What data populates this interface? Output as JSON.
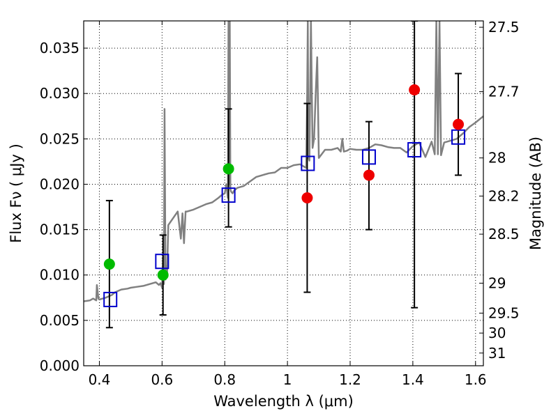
{
  "chart_data": {
    "type": "scatter",
    "xlabel": "Wavelength  λ (μm)",
    "ylabel": "Flux  Fν  ( μJy )",
    "ylabel_right": "Magnitude (AB)",
    "xlim": [
      0.35,
      1.625
    ],
    "ylim": [
      0.0,
      0.038
    ],
    "grid": true,
    "x_ticks": [
      0.4,
      0.6,
      0.8,
      1.0,
      1.2,
      1.4,
      1.6
    ],
    "x_tick_labels": [
      "0.4",
      "0.6",
      "0.8",
      "1",
      "1.2",
      "1.4",
      "1.6"
    ],
    "y_ticks": [
      0.0,
      0.005,
      0.01,
      0.015,
      0.02,
      0.025,
      0.03,
      0.035
    ],
    "y_tick_labels": [
      "0.000",
      "0.005",
      "0.010",
      "0.015",
      "0.020",
      "0.025",
      "0.030",
      "0.035"
    ],
    "right_ticks": [
      {
        "flux": 0.0373,
        "label": "27.5"
      },
      {
        "flux": 0.0302,
        "label": "27.7"
      },
      {
        "flux": 0.0229,
        "label": "28"
      },
      {
        "flux": 0.0187,
        "label": "28.2"
      },
      {
        "flux": 0.0145,
        "label": "28.5"
      },
      {
        "flux": 0.0091,
        "label": "29"
      },
      {
        "flux": 0.0058,
        "label": "29.5"
      },
      {
        "flux": 0.0036,
        "label": "30"
      },
      {
        "flux": 0.0014,
        "label": "31"
      }
    ],
    "series": [
      {
        "kind": "spectrum",
        "color": "#808080",
        "x": [
          0.35,
          0.37,
          0.38,
          0.39,
          0.392,
          0.397,
          0.4,
          0.42,
          0.44,
          0.45,
          0.47,
          0.49,
          0.5,
          0.52,
          0.54,
          0.56,
          0.58,
          0.59,
          0.595,
          0.6,
          0.603,
          0.606,
          0.608,
          0.611,
          0.613,
          0.616,
          0.62,
          0.64,
          0.65,
          0.66,
          0.665,
          0.67,
          0.675,
          0.68,
          0.7,
          0.72,
          0.74,
          0.76,
          0.78,
          0.79,
          0.8,
          0.805,
          0.81,
          0.812,
          0.814,
          0.816,
          0.818,
          0.82,
          0.825,
          0.83,
          0.84,
          0.86,
          0.88,
          0.9,
          0.92,
          0.94,
          0.96,
          0.98,
          1.0,
          1.02,
          1.04,
          1.05,
          1.06,
          1.063,
          1.065,
          1.067,
          1.07,
          1.075,
          1.08,
          1.085,
          1.09,
          1.095,
          1.1,
          1.12,
          1.14,
          1.16,
          1.17,
          1.175,
          1.18,
          1.19,
          1.2,
          1.22,
          1.24,
          1.26,
          1.28,
          1.3,
          1.32,
          1.34,
          1.36,
          1.38,
          1.4,
          1.42,
          1.44,
          1.46,
          1.47,
          1.475,
          1.48,
          1.485,
          1.49,
          1.5,
          1.52,
          1.54,
          1.56,
          1.58,
          1.6,
          1.625
        ],
        "y": [
          0.0071,
          0.0072,
          0.0074,
          0.0072,
          0.0089,
          0.0074,
          0.0073,
          0.0075,
          0.0078,
          0.0081,
          0.0084,
          0.0085,
          0.0086,
          0.0087,
          0.0088,
          0.009,
          0.0092,
          0.0089,
          0.0091,
          0.0086,
          0.012,
          0.009,
          0.0283,
          0.0095,
          0.011,
          0.01,
          0.0155,
          0.0165,
          0.017,
          0.014,
          0.0168,
          0.0135,
          0.017,
          0.017,
          0.0172,
          0.0175,
          0.0178,
          0.018,
          0.0185,
          0.0188,
          0.019,
          0.02,
          0.0185,
          0.038,
          0.02,
          0.038,
          0.0195,
          0.0192,
          0.019,
          0.0193,
          0.0196,
          0.0198,
          0.0203,
          0.0208,
          0.021,
          0.0212,
          0.0213,
          0.0218,
          0.0218,
          0.0221,
          0.0222,
          0.022,
          0.0218,
          0.03,
          0.038,
          0.023,
          0.0226,
          0.038,
          0.024,
          0.025,
          0.03,
          0.034,
          0.0229,
          0.0238,
          0.0238,
          0.024,
          0.0236,
          0.025,
          0.0236,
          0.0237,
          0.0239,
          0.0238,
          0.0238,
          0.024,
          0.0244,
          0.0243,
          0.0241,
          0.024,
          0.024,
          0.0235,
          0.0242,
          0.0246,
          0.023,
          0.0247,
          0.0233,
          0.038,
          0.0233,
          0.038,
          0.0232,
          0.0246,
          0.0248,
          0.025,
          0.0256,
          0.0263,
          0.0268,
          0.0275
        ]
      },
      {
        "kind": "model_photometry",
        "marker": "open-square",
        "color": "#0000cc",
        "x": [
          0.435,
          0.6,
          0.812,
          1.065,
          1.26,
          1.405,
          1.545
        ],
        "y": [
          0.0073,
          0.0115,
          0.0188,
          0.0223,
          0.023,
          0.0238,
          0.0252
        ]
      },
      {
        "kind": "optical_photometry",
        "marker": "filled-circle",
        "color": "#00bb00",
        "x": [
          0.432,
          0.603,
          0.812
        ],
        "y": [
          0.0112,
          0.01,
          0.0217
        ]
      },
      {
        "kind": "nir_photometry",
        "marker": "filled-circle",
        "color": "#ee0000",
        "x": [
          1.063,
          1.26,
          1.405,
          1.545
        ],
        "y": [
          0.0185,
          0.021,
          0.0304,
          0.0266
        ]
      },
      {
        "kind": "error_bars",
        "color": "#000000",
        "x": [
          0.432,
          0.603,
          0.812,
          1.063,
          1.26,
          1.405,
          1.545
        ],
        "low": [
          0.0042,
          0.0056,
          0.0153,
          0.0081,
          0.015,
          0.0064,
          0.021
        ],
        "high": [
          0.0182,
          0.0144,
          0.0283,
          0.0289,
          0.0269,
          0.038,
          0.0322
        ]
      }
    ]
  }
}
